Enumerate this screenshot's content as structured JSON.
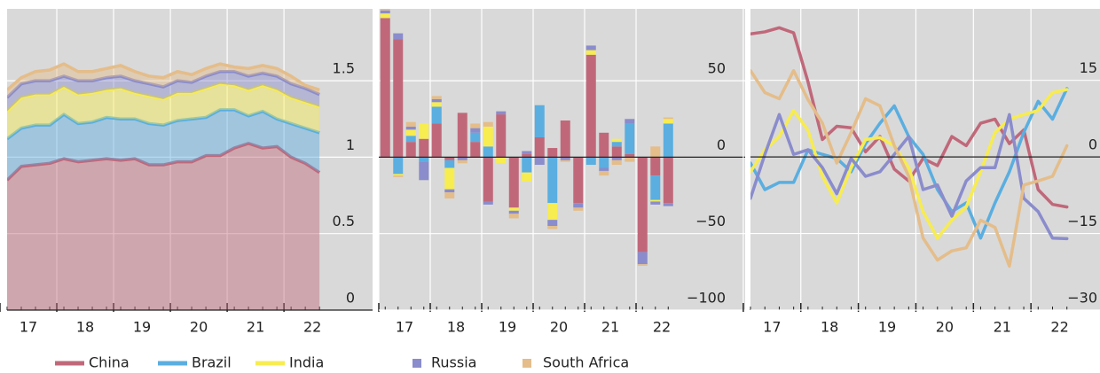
{
  "chart_data": [
    {
      "type": "area",
      "stacked": true,
      "x": [
        2017.125,
        2017.375,
        2017.625,
        2017.875,
        2018.125,
        2018.375,
        2018.625,
        2018.875,
        2019.125,
        2019.375,
        2019.625,
        2019.875,
        2020.125,
        2020.375,
        2020.625,
        2020.875,
        2021.125,
        2021.375,
        2021.625,
        2021.875,
        2022.125,
        2022.375,
        2022.625
      ],
      "xlim": [
        2017.125,
        2023.56
      ],
      "xticks": [
        {
          "value": 2017,
          "label": "17"
        },
        {
          "value": 2018,
          "label": "18"
        },
        {
          "value": 2019,
          "label": "19"
        },
        {
          "value": 2020,
          "label": "20"
        },
        {
          "value": 2021,
          "label": "21"
        },
        {
          "value": 2022,
          "label": "22"
        }
      ],
      "ylim": [
        0,
        1.97
      ],
      "yticks": [
        0,
        0.5,
        1,
        1.5
      ],
      "grid": true,
      "series": [
        {
          "name": "China",
          "color": "#c0687a",
          "values": [
            0.85,
            0.94,
            0.95,
            0.96,
            0.99,
            0.97,
            0.98,
            0.99,
            0.98,
            0.99,
            0.95,
            0.95,
            0.97,
            0.97,
            1.01,
            1.01,
            1.06,
            1.09,
            1.06,
            1.07,
            1.0,
            0.96,
            0.9
          ]
        },
        {
          "name": "Brazil",
          "color": "#5aaee0",
          "values": [
            0.27,
            0.25,
            0.26,
            0.25,
            0.29,
            0.25,
            0.25,
            0.27,
            0.27,
            0.26,
            0.27,
            0.26,
            0.27,
            0.28,
            0.25,
            0.3,
            0.25,
            0.18,
            0.24,
            0.18,
            0.22,
            0.23,
            0.26
          ]
        },
        {
          "name": "India",
          "color": "#f7ec50",
          "values": [
            0.18,
            0.2,
            0.2,
            0.2,
            0.18,
            0.19,
            0.19,
            0.18,
            0.2,
            0.17,
            0.18,
            0.17,
            0.18,
            0.17,
            0.19,
            0.17,
            0.16,
            0.17,
            0.17,
            0.19,
            0.17,
            0.17,
            0.17
          ]
        },
        {
          "name": "Russia",
          "color": "#8a8ccc",
          "values": [
            0.09,
            0.09,
            0.09,
            0.09,
            0.07,
            0.09,
            0.08,
            0.08,
            0.08,
            0.08,
            0.08,
            0.08,
            0.08,
            0.07,
            0.08,
            0.08,
            0.09,
            0.09,
            0.08,
            0.09,
            0.09,
            0.09,
            0.08
          ]
        },
        {
          "name": "South Africa",
          "color": "#e4bd8a",
          "values": [
            0.05,
            0.04,
            0.06,
            0.07,
            0.08,
            0.06,
            0.06,
            0.06,
            0.07,
            0.06,
            0.05,
            0.06,
            0.06,
            0.05,
            0.05,
            0.05,
            0.03,
            0.05,
            0.05,
            0.05,
            0.05,
            0.02,
            0.03
          ]
        }
      ]
    },
    {
      "type": "bar",
      "stacked": true,
      "x": [
        2017.125,
        2017.375,
        2017.625,
        2017.875,
        2018.125,
        2018.375,
        2018.625,
        2018.875,
        2019.125,
        2019.375,
        2019.625,
        2019.875,
        2020.125,
        2020.375,
        2020.625,
        2020.875,
        2021.125,
        2021.375,
        2021.625,
        2021.875,
        2022.125,
        2022.375,
        2022.625
      ],
      "xlim": [
        2017,
        2024.12
      ],
      "xticks": [
        {
          "value": 2017,
          "label": "17"
        },
        {
          "value": 2018,
          "label": "18"
        },
        {
          "value": 2019,
          "label": "19"
        },
        {
          "value": 2020,
          "label": "20"
        },
        {
          "value": 2021,
          "label": "21"
        },
        {
          "value": 2022,
          "label": "22"
        }
      ],
      "ylim": [
        -100,
        97
      ],
      "yticks": [
        50,
        0,
        {
          "value": -50,
          "label": "−50"
        },
        {
          "value": -100,
          "label": "−100"
        }
      ],
      "grid": true,
      "series": [
        {
          "color": "#c0687a",
          "values": [
            91,
            77,
            10,
            12,
            22,
            -2,
            29,
            10,
            -29,
            28,
            -33,
            2,
            13,
            6,
            24,
            -30,
            67,
            16,
            7,
            2,
            -62,
            -12,
            -30
          ]
        },
        {
          "color": "#5aaee0",
          "values": [
            0,
            -11,
            4,
            -3,
            11,
            -5,
            0,
            6,
            7,
            0,
            0,
            -10,
            21,
            -30,
            0,
            0,
            -5,
            -7,
            3,
            20,
            0,
            -16,
            22
          ]
        },
        {
          "color": "#f7ec50",
          "values": [
            3,
            -1,
            4,
            10,
            3,
            -14,
            0,
            0,
            13,
            -4,
            -2,
            -6,
            0,
            -11,
            0,
            0,
            3,
            0,
            2,
            0,
            0,
            -1,
            3
          ]
        },
        {
          "color": "#8a8ccc",
          "values": [
            2,
            4,
            2,
            -12,
            2,
            -2,
            -2,
            3,
            -2,
            2,
            -2,
            2,
            -5,
            -4,
            -2,
            -3,
            3,
            -2,
            -2,
            3,
            -8,
            -2,
            -2
          ]
        },
        {
          "color": "#e4bd8a",
          "values": [
            3,
            -1,
            3,
            0,
            2,
            -4,
            -2,
            3,
            3,
            0,
            -3,
            0,
            0,
            -2,
            -1,
            -2,
            0,
            -3,
            -3,
            -3,
            -1,
            7,
            1
          ]
        }
      ]
    },
    {
      "type": "line",
      "x": [
        2017.125,
        2017.375,
        2017.625,
        2017.875,
        2018.125,
        2018.375,
        2018.625,
        2018.875,
        2019.125,
        2019.375,
        2019.625,
        2019.875,
        2020.125,
        2020.375,
        2020.625,
        2020.875,
        2021.125,
        2021.375,
        2021.625,
        2021.875,
        2022.125,
        2022.375,
        2022.625
      ],
      "xlim": [
        2017.125,
        2023.2
      ],
      "xticks": [
        {
          "value": 2017,
          "label": "17"
        },
        {
          "value": 2018,
          "label": "18"
        },
        {
          "value": 2019,
          "label": "19"
        },
        {
          "value": 2020,
          "label": "20"
        },
        {
          "value": 2021,
          "label": "21"
        },
        {
          "value": 2022,
          "label": "22"
        }
      ],
      "ylim": [
        -30,
        29
      ],
      "yticks": [
        15,
        0,
        {
          "value": -15,
          "label": "−15"
        },
        {
          "value": -30,
          "label": "−30"
        }
      ],
      "grid": true,
      "series": [
        {
          "color": "#c0687a",
          "values": [
            24.1,
            24.5,
            25.3,
            24.3,
            14.7,
            3.4,
            6,
            5.7,
            1,
            4,
            -2.4,
            -4.7,
            -0.3,
            -1.7,
            4,
            2.2,
            6.6,
            7.4,
            2.6,
            5.3,
            -6.4,
            -9.3,
            -9.8
          ]
        },
        {
          "color": "#5aaee0",
          "values": [
            -1.2,
            -6.4,
            -5,
            -5,
            1.4,
            0.5,
            -0.3,
            -2.9,
            2.6,
            6.6,
            10,
            4,
            0.5,
            -6.4,
            -10.7,
            -9,
            -15.9,
            -9,
            -2.9,
            4.8,
            10.9,
            7.4,
            13.4
          ]
        },
        {
          "color": "#f7ec50",
          "values": [
            -2.9,
            1.4,
            4,
            9.1,
            5.2,
            -3.8,
            -9,
            -2.1,
            3.4,
            3.8,
            2.2,
            -2.1,
            -10.7,
            -15.9,
            -12.4,
            -9.8,
            -2.9,
            4.8,
            7.4,
            8.3,
            9.1,
            12.6,
            13.2
          ]
        },
        {
          "color": "#8a8ccc",
          "values": [
            -8.1,
            0.5,
            8.3,
            0.5,
            1.4,
            -2.1,
            -7.2,
            -0.3,
            -3.8,
            -2.9,
            0.5,
            4,
            -6.4,
            -5.5,
            -11.6,
            -4.7,
            -2.1,
            -2.1,
            8.3,
            -8.1,
            -10.7,
            -15.9,
            -16
          ]
        },
        {
          "color": "#e4bd8a",
          "values": [
            16.9,
            12.6,
            11.4,
            16.9,
            11.2,
            6.6,
            -1.2,
            4.8,
            11.4,
            10,
            2.2,
            -3.8,
            -15.9,
            -20.2,
            -18.4,
            -17.8,
            -12.4,
            -13.8,
            -21.4,
            -5.5,
            -4.7,
            -3.8,
            2.2
          ]
        }
      ]
    }
  ]
}
